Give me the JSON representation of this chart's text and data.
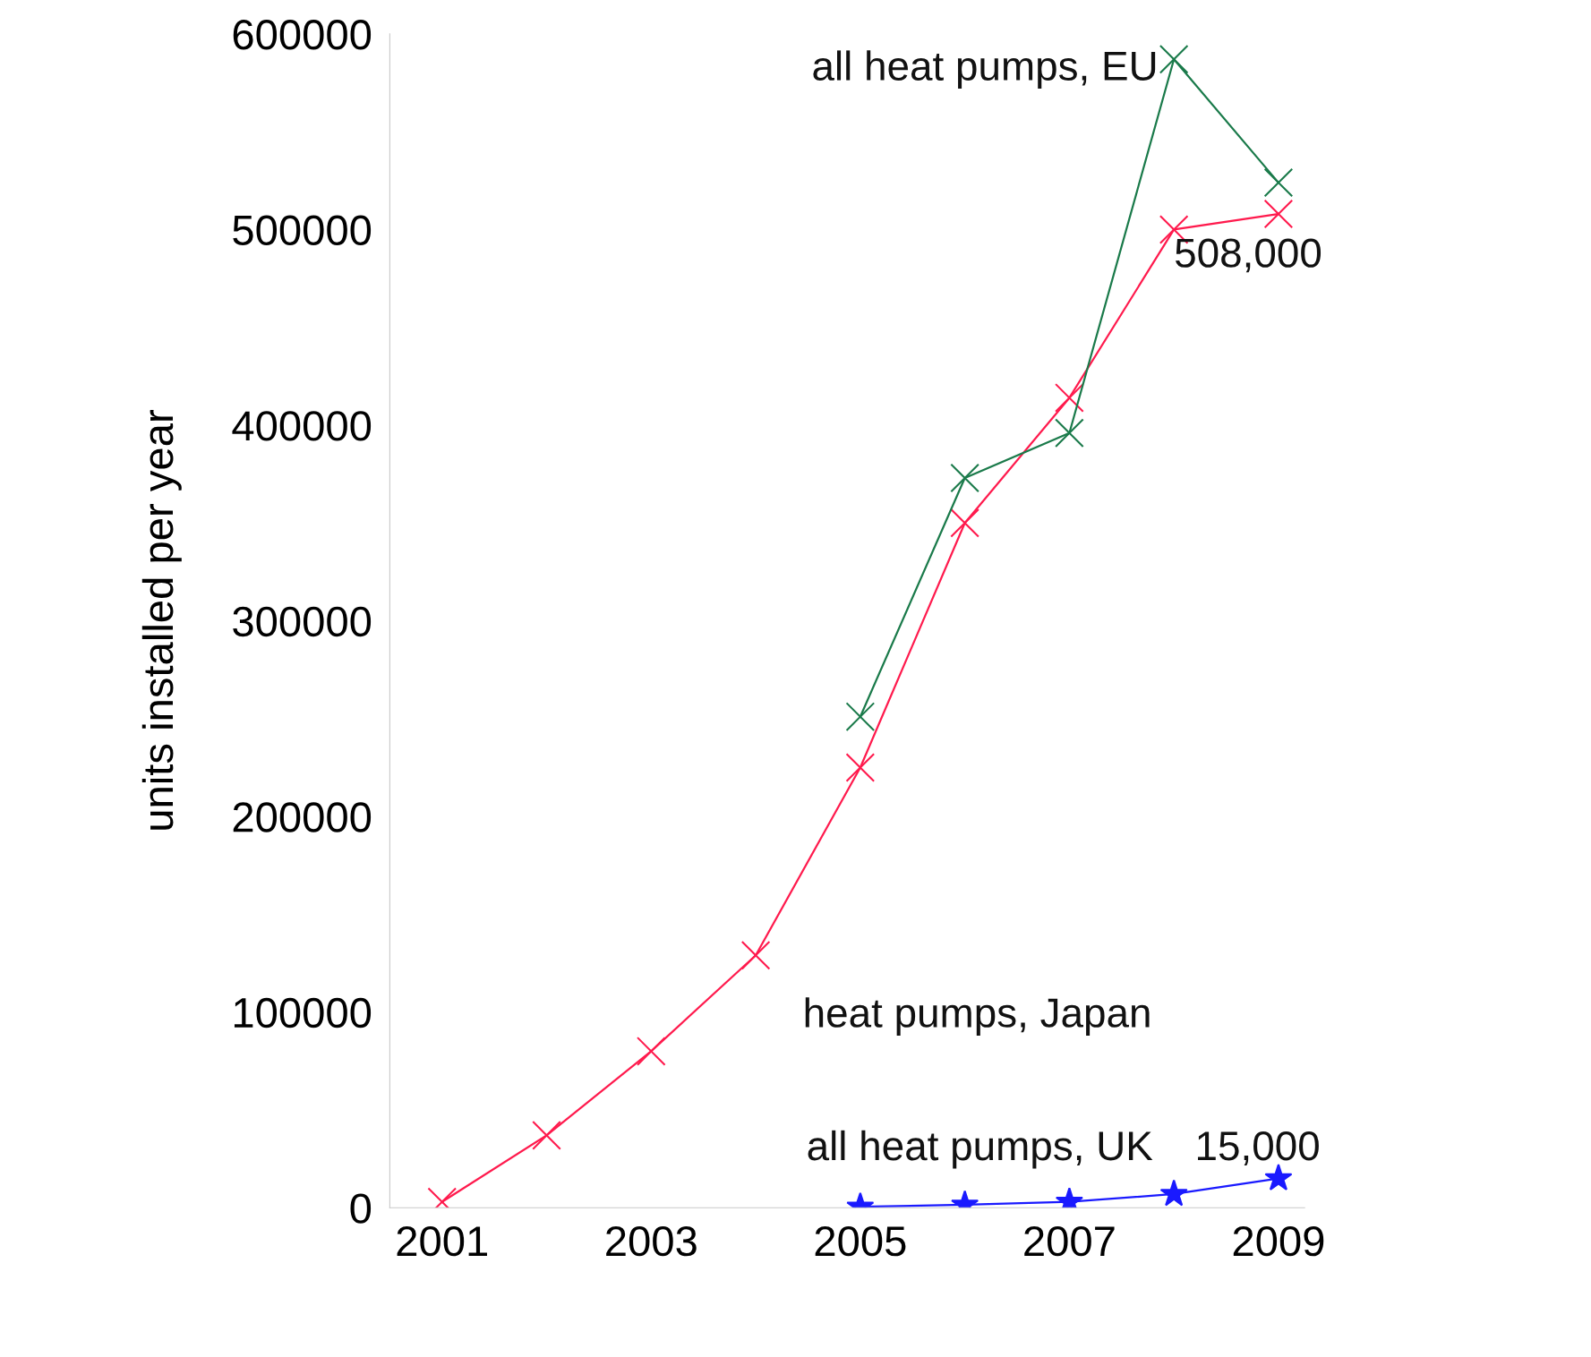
{
  "chart_data": {
    "type": "line",
    "ylabel": "units installed per year",
    "x": [
      2001,
      2002,
      2003,
      2004,
      2005,
      2006,
      2007,
      2008,
      2009
    ],
    "series": [
      {
        "name": "heat pumps, Japan",
        "color": "#ff1a4d",
        "marker": "cross",
        "values": [
          3000,
          37000,
          80000,
          129000,
          225000,
          350000,
          414000,
          500000,
          508000
        ],
        "value_labels": [
          null,
          null,
          null,
          null,
          null,
          null,
          null,
          null,
          "508,000"
        ]
      },
      {
        "name": "all heat pumps, EU",
        "color": "#1a7a4a",
        "marker": "cross",
        "values": [
          null,
          null,
          null,
          null,
          251000,
          373000,
          396000,
          587000,
          524000
        ]
      },
      {
        "name": "all heat pumps, UK",
        "color": "#1a1aff",
        "marker": "star",
        "values": [
          null,
          null,
          null,
          null,
          500,
          1500,
          3000,
          7000,
          15000
        ],
        "value_labels": [
          null,
          null,
          null,
          null,
          null,
          null,
          null,
          null,
          "15,000"
        ]
      }
    ],
    "xlim": [
      2000.5,
      2009.25
    ],
    "xticks": [
      2001,
      2003,
      2005,
      2007,
      2009
    ],
    "ylim": [
      0,
      600000
    ],
    "yticks": [
      0,
      100000,
      200000,
      300000,
      400000,
      500000,
      600000
    ],
    "grid": false,
    "legend": false
  }
}
